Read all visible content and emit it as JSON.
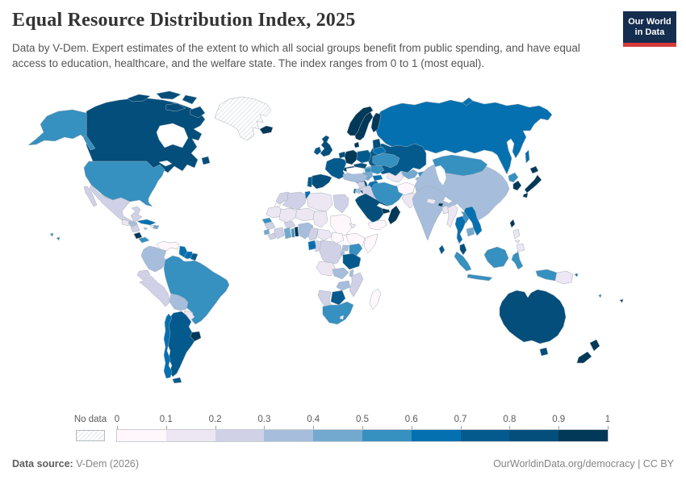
{
  "header": {
    "title": "Equal Resource Distribution Index, 2025",
    "subtitle": "Data by V-Dem. Expert estimates of the extent to which all social groups benefit from public spending, and have equal access to education, healthcare, and the welfare state. The index ranges from 0 to 1 (most equal).",
    "logo": {
      "line1": "Our World",
      "line2": "in Data",
      "bg_color": "#152d4f",
      "accent_color": "#d73a3a"
    }
  },
  "legend": {
    "no_data_label": "No data"
  },
  "footer": {
    "source_label": "Data source:",
    "source_value": " V-Dem (2026)",
    "right_text": "OurWorldinData.org/democracy | CC BY"
  },
  "chart_data": {
    "type": "heatmap",
    "subtype": "choropleth-world-map",
    "title": "Equal Resource Distribution Index, 2025",
    "value_range": [
      0,
      1
    ],
    "legend_position": "bottom",
    "tick_labels": [
      "0",
      "0.1",
      "0.2",
      "0.3",
      "0.4",
      "0.5",
      "0.6",
      "0.7",
      "0.8",
      "0.9",
      "1"
    ],
    "no_data": {
      "label": "No data",
      "hatch_color": "#c9ced2"
    },
    "bins": [
      {
        "range": "0–0.1",
        "color": "#fff7fb"
      },
      {
        "range": "0.1–0.2",
        "color": "#ece7f2"
      },
      {
        "range": "0.2–0.3",
        "color": "#d0d1e6"
      },
      {
        "range": "0.3–0.4",
        "color": "#a6bddb"
      },
      {
        "range": "0.4–0.5",
        "color": "#74a9cf"
      },
      {
        "range": "0.5–0.6",
        "color": "#3690c0"
      },
      {
        "range": "0.6–0.7",
        "color": "#0570b0"
      },
      {
        "range": "0.7–0.8",
        "color": "#045a8d"
      },
      {
        "range": "0.8–0.9",
        "color": "#034e7b"
      },
      {
        "range": "0.9–1",
        "color": "#023858"
      }
    ],
    "countries": [
      {
        "id": "canada",
        "name": "Canada",
        "bin": 8
      },
      {
        "id": "usa",
        "name": "United States",
        "bin": 5
      },
      {
        "id": "greenland",
        "name": "Greenland",
        "bin": null
      },
      {
        "id": "mexico",
        "name": "Mexico",
        "bin": 2
      },
      {
        "id": "guatemala",
        "name": "Guatemala",
        "bin": 1
      },
      {
        "id": "honduras",
        "name": "Honduras",
        "bin": 3
      },
      {
        "id": "nicaragua",
        "name": "Nicaragua",
        "bin": 2
      },
      {
        "id": "costa-rica",
        "name": "Costa Rica",
        "bin": 9
      },
      {
        "id": "panama",
        "name": "Panama",
        "bin": 5
      },
      {
        "id": "cuba",
        "name": "Cuba",
        "bin": 6
      },
      {
        "id": "jamaica",
        "name": "Jamaica",
        "bin": 3
      },
      {
        "id": "haiti",
        "name": "Haiti",
        "bin": 1
      },
      {
        "id": "dominican-republic",
        "name": "Dominican Republic",
        "bin": 4
      },
      {
        "id": "trinidad",
        "name": "Trinidad and Tobago",
        "bin": 6
      },
      {
        "id": "venezuela",
        "name": "Venezuela",
        "bin": 0
      },
      {
        "id": "colombia",
        "name": "Colombia",
        "bin": 3
      },
      {
        "id": "guyana",
        "name": "Guyana",
        "bin": 6
      },
      {
        "id": "suriname",
        "name": "Suriname",
        "bin": 6
      },
      {
        "id": "french-guiana",
        "name": "French Guiana",
        "bin": 7
      },
      {
        "id": "ecuador",
        "name": "Ecuador",
        "bin": 2
      },
      {
        "id": "peru",
        "name": "Peru",
        "bin": 2
      },
      {
        "id": "brazil",
        "name": "Brazil",
        "bin": 5
      },
      {
        "id": "bolivia",
        "name": "Bolivia",
        "bin": 3
      },
      {
        "id": "paraguay",
        "name": "Paraguay",
        "bin": 1
      },
      {
        "id": "uruguay",
        "name": "Uruguay",
        "bin": 9
      },
      {
        "id": "argentina",
        "name": "Argentina",
        "bin": 7
      },
      {
        "id": "chile",
        "name": "Chile",
        "bin": 6
      },
      {
        "id": "iceland",
        "name": "Iceland",
        "bin": 9
      },
      {
        "id": "norway",
        "name": "Norway",
        "bin": 9
      },
      {
        "id": "sweden",
        "name": "Sweden",
        "bin": 9
      },
      {
        "id": "finland",
        "name": "Finland",
        "bin": 9
      },
      {
        "id": "denmark",
        "name": "Denmark",
        "bin": 9
      },
      {
        "id": "uk",
        "name": "United Kingdom",
        "bin": 8
      },
      {
        "id": "ireland",
        "name": "Ireland",
        "bin": 7
      },
      {
        "id": "netherlands",
        "name": "Netherlands/Belgium",
        "bin": 8
      },
      {
        "id": "germany",
        "name": "Germany",
        "bin": 9
      },
      {
        "id": "poland",
        "name": "Poland",
        "bin": 7
      },
      {
        "id": "czechia",
        "name": "Czechia/Slovakia",
        "bin": 8
      },
      {
        "id": "austria",
        "name": "Austria/Switzerland",
        "bin": 9
      },
      {
        "id": "france",
        "name": "France",
        "bin": 7
      },
      {
        "id": "spain",
        "name": "Spain",
        "bin": 8
      },
      {
        "id": "portugal",
        "name": "Portugal",
        "bin": 7
      },
      {
        "id": "italy",
        "name": "Italy",
        "bin": 8
      },
      {
        "id": "hungary",
        "name": "Hungary",
        "bin": 5
      },
      {
        "id": "romania",
        "name": "Romania",
        "bin": 5
      },
      {
        "id": "serbia",
        "name": "Western Balkans",
        "bin": 4
      },
      {
        "id": "bulgaria",
        "name": "Bulgaria",
        "bin": 6
      },
      {
        "id": "greece",
        "name": "Greece",
        "bin": 6
      },
      {
        "id": "ukraine",
        "name": "Ukraine",
        "bin": 5
      },
      {
        "id": "belarus",
        "name": "Belarus",
        "bin": 6
      },
      {
        "id": "baltic-states",
        "name": "Baltic States",
        "bin": 8
      },
      {
        "id": "russia",
        "name": "Russia",
        "bin": 6
      },
      {
        "id": "kazakhstan",
        "name": "Kazakhstan",
        "bin": 7
      },
      {
        "id": "uzbekistan",
        "name": "Uzbekistan",
        "bin": 4
      },
      {
        "id": "turkmenistan",
        "name": "Turkmenistan",
        "bin": 1
      },
      {
        "id": "kyrgyzstan",
        "name": "Kyrgyzstan",
        "bin": 5
      },
      {
        "id": "tajikistan",
        "name": "Tajikistan",
        "bin": 3
      },
      {
        "id": "caucasus",
        "name": "Caucasus",
        "bin": 4
      },
      {
        "id": "turkey",
        "name": "Turkey",
        "bin": 3
      },
      {
        "id": "syria",
        "name": "Syria",
        "bin": 2
      },
      {
        "id": "jordan",
        "name": "Jordan",
        "bin": 3
      },
      {
        "id": "israel",
        "name": "Israel",
        "bin": 6
      },
      {
        "id": "iraq",
        "name": "Iraq",
        "bin": 2
      },
      {
        "id": "iran",
        "name": "Iran",
        "bin": 5
      },
      {
        "id": "saudi-arabia",
        "name": "Saudi Arabia",
        "bin": 8
      },
      {
        "id": "yemen",
        "name": "Yemen",
        "bin": 0
      },
      {
        "id": "oman",
        "name": "Oman",
        "bin": 9
      },
      {
        "id": "uae",
        "name": "United Arab Emirates",
        "bin": 9
      },
      {
        "id": "morocco",
        "name": "Morocco",
        "bin": 2
      },
      {
        "id": "western-sahara",
        "name": "Western Sahara",
        "bin": null
      },
      {
        "id": "algeria",
        "name": "Algeria",
        "bin": 2
      },
      {
        "id": "tunisia",
        "name": "Tunisia",
        "bin": 6
      },
      {
        "id": "libya",
        "name": "Libya",
        "bin": 1
      },
      {
        "id": "egypt",
        "name": "Egypt",
        "bin": 2
      },
      {
        "id": "mauritania",
        "name": "Mauritania",
        "bin": 1
      },
      {
        "id": "mali",
        "name": "Mali",
        "bin": 1
      },
      {
        "id": "niger",
        "name": "Niger",
        "bin": 1
      },
      {
        "id": "chad",
        "name": "Chad",
        "bin": 1
      },
      {
        "id": "sudan",
        "name": "Sudan",
        "bin": 0
      },
      {
        "id": "eritrea",
        "name": "Eritrea",
        "bin": 1
      },
      {
        "id": "ethiopia",
        "name": "Ethiopia",
        "bin": 0
      },
      {
        "id": "somalia",
        "name": "Somalia",
        "bin": 0
      },
      {
        "id": "senegal",
        "name": "Senegal",
        "bin": 5
      },
      {
        "id": "guinea",
        "name": "Guinea",
        "bin": 2
      },
      {
        "id": "sierra-leone",
        "name": "Sierra Leone",
        "bin": 4
      },
      {
        "id": "liberia",
        "name": "Liberia",
        "bin": 2
      },
      {
        "id": "cote-divoire",
        "name": "Côte d'Ivoire",
        "bin": 2
      },
      {
        "id": "burkina-faso",
        "name": "Burkina Faso",
        "bin": 2
      },
      {
        "id": "ghana",
        "name": "Ghana",
        "bin": 4
      },
      {
        "id": "togo",
        "name": "Togo",
        "bin": 5
      },
      {
        "id": "benin",
        "name": "Benin",
        "bin": 9
      },
      {
        "id": "nigeria",
        "name": "Nigeria",
        "bin": 3
      },
      {
        "id": "cameroon",
        "name": "Cameroon",
        "bin": 2
      },
      {
        "id": "central-african-republic",
        "name": "Central African Republic",
        "bin": 1
      },
      {
        "id": "south-sudan",
        "name": "South Sudan",
        "bin": 0
      },
      {
        "id": "gabon",
        "name": "Gabon",
        "bin": 6
      },
      {
        "id": "congo",
        "name": "Congo",
        "bin": 2
      },
      {
        "id": "drc",
        "name": "Democratic Republic of Congo",
        "bin": 2
      },
      {
        "id": "uganda",
        "name": "Uganda",
        "bin": 3
      },
      {
        "id": "kenya",
        "name": "Kenya",
        "bin": 5
      },
      {
        "id": "rwanda-burundi",
        "name": "Rwanda/Burundi",
        "bin": 3
      },
      {
        "id": "tanzania",
        "name": "Tanzania",
        "bin": 7
      },
      {
        "id": "angola",
        "name": "Angola",
        "bin": 1
      },
      {
        "id": "zambia",
        "name": "Zambia",
        "bin": 3
      },
      {
        "id": "malawi",
        "name": "Malawi",
        "bin": 3
      },
      {
        "id": "mozambique",
        "name": "Mozambique",
        "bin": 2
      },
      {
        "id": "zimbabwe",
        "name": "Zimbabwe",
        "bin": 3
      },
      {
        "id": "botswana",
        "name": "Botswana",
        "bin": 7
      },
      {
        "id": "namibia",
        "name": "Namibia",
        "bin": 2
      },
      {
        "id": "south-africa",
        "name": "South Africa",
        "bin": 5
      },
      {
        "id": "lesotho",
        "name": "Lesotho",
        "bin": 1
      },
      {
        "id": "madagascar",
        "name": "Madagascar",
        "bin": 0
      },
      {
        "id": "afghanistan",
        "name": "Afghanistan",
        "bin": 0
      },
      {
        "id": "pakistan",
        "name": "Pakistan",
        "bin": 1
      },
      {
        "id": "india",
        "name": "India",
        "bin": 3
      },
      {
        "id": "nepal",
        "name": "Nepal",
        "bin": 1
      },
      {
        "id": "bhutan",
        "name": "Bhutan",
        "bin": 9
      },
      {
        "id": "bangladesh",
        "name": "Bangladesh",
        "bin": 1
      },
      {
        "id": "sri-lanka",
        "name": "Sri Lanka",
        "bin": 7
      },
      {
        "id": "myanmar",
        "name": "Myanmar",
        "bin": 1
      },
      {
        "id": "thailand",
        "name": "Thailand",
        "bin": 6
      },
      {
        "id": "laos",
        "name": "Laos",
        "bin": 5
      },
      {
        "id": "vietnam",
        "name": "Vietnam",
        "bin": 6
      },
      {
        "id": "cambodia",
        "name": "Cambodia",
        "bin": 4
      },
      {
        "id": "malaysia",
        "name": "Malaysia",
        "bin": 8
      },
      {
        "id": "indonesia",
        "name": "Indonesia",
        "bin": 5
      },
      {
        "id": "philippines",
        "name": "Philippines",
        "bin": 1
      },
      {
        "id": "china",
        "name": "China",
        "bin": 3
      },
      {
        "id": "mongolia",
        "name": "Mongolia",
        "bin": 5
      },
      {
        "id": "north-korea",
        "name": "North Korea",
        "bin": 5
      },
      {
        "id": "south-korea",
        "name": "South Korea",
        "bin": 9
      },
      {
        "id": "japan",
        "name": "Japan",
        "bin": 9
      },
      {
        "id": "taiwan",
        "name": "Taiwan",
        "bin": 9
      },
      {
        "id": "papua-new-guinea",
        "name": "Papua New Guinea",
        "bin": 1
      },
      {
        "id": "australia",
        "name": "Australia",
        "bin": 8
      },
      {
        "id": "new-zealand",
        "name": "New Zealand",
        "bin": 9
      },
      {
        "id": "fiji",
        "name": "Fiji",
        "bin": 9
      },
      {
        "id": "solomon-islands",
        "name": "Solomon Islands",
        "bin": 6
      },
      {
        "id": "vanuatu",
        "name": "Vanuatu",
        "bin": 6
      }
    ]
  }
}
